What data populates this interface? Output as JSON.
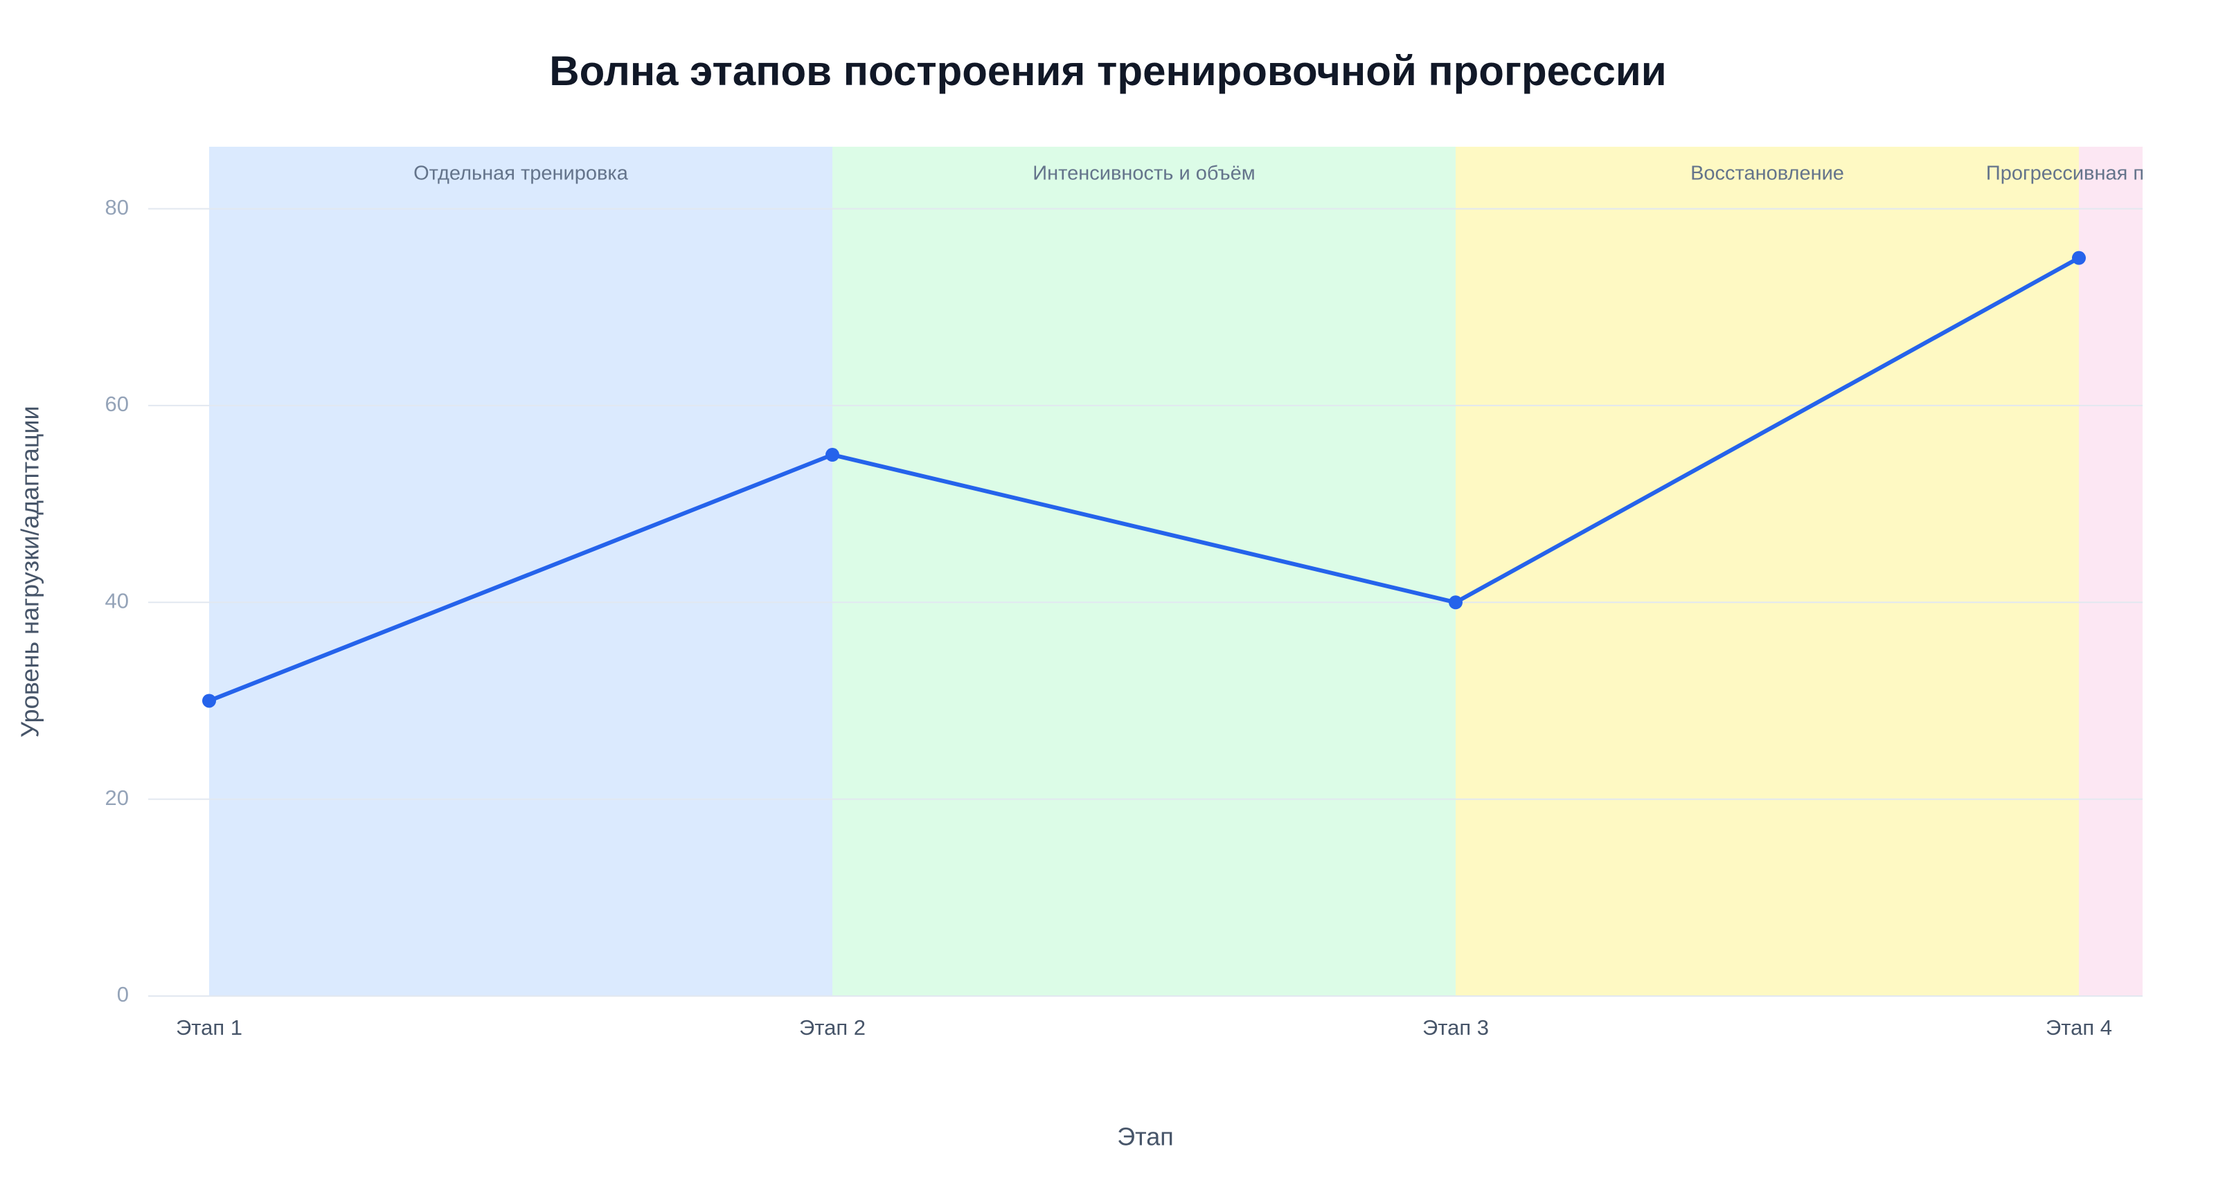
{
  "chart_data": {
    "type": "line",
    "title": "Волна этапов построения тренировочной прогрессии",
    "x_label": "Этап",
    "y_label": "Уровень нагрузки/адаптации",
    "categories": [
      "Этап 1",
      "Этап 2",
      "Этап 3",
      "Этап 4"
    ],
    "series": [
      {
        "name": "Уровень нагрузки/адаптации",
        "color": "#2563eb",
        "values": [
          30,
          55,
          40,
          75
        ]
      }
    ],
    "bands": [
      {
        "label": "Отдельная тренировка",
        "color": "#dbeafe"
      },
      {
        "label": "Интенсивность и объём",
        "color": "#dcfce7"
      },
      {
        "label": "Восстановление",
        "color": "#fef9c3"
      },
      {
        "label": "Прогрессивная перегрузка",
        "color": "#fce7f3"
      }
    ],
    "ylim": [
      0,
      86.3
    ],
    "yticks": [
      0,
      20,
      40,
      60,
      80
    ],
    "grid": true
  }
}
